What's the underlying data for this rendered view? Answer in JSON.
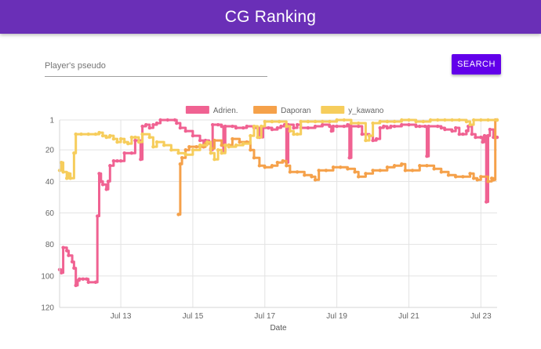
{
  "app": {
    "title": "CG Ranking"
  },
  "search": {
    "placeholder": "Player's pseudo",
    "value": "",
    "button_label": "SEARCH"
  },
  "chart_data": {
    "type": "line",
    "title": "",
    "xlabel": "Date",
    "ylabel": "",
    "y_reversed": true,
    "ylim": [
      1,
      120
    ],
    "yticks": [
      1,
      20,
      40,
      60,
      80,
      100,
      120
    ],
    "xlim": [
      11.3,
      23.45
    ],
    "xticks": [
      {
        "x": 13,
        "label": "Jul 13"
      },
      {
        "x": 15,
        "label": "Jul 15"
      },
      {
        "x": 17,
        "label": "Jul 17"
      },
      {
        "x": 19,
        "label": "Jul 19"
      },
      {
        "x": 21,
        "label": "Jul 21"
      },
      {
        "x": 23,
        "label": "Jul 23"
      }
    ],
    "grid": true,
    "legend": "top",
    "series": [
      {
        "name": "Adrien.",
        "color": "#f06292",
        "points": [
          [
            11.3,
            96
          ],
          [
            11.35,
            98
          ],
          [
            11.4,
            82
          ],
          [
            11.5,
            84
          ],
          [
            11.55,
            87
          ],
          [
            11.65,
            91
          ],
          [
            11.7,
            95
          ],
          [
            11.75,
            106
          ],
          [
            11.8,
            103
          ],
          [
            11.85,
            102
          ],
          [
            11.95,
            102
          ],
          [
            12.05,
            102
          ],
          [
            12.1,
            104
          ],
          [
            12.3,
            104
          ],
          [
            12.35,
            62
          ],
          [
            12.4,
            35
          ],
          [
            12.45,
            40
          ],
          [
            12.5,
            42
          ],
          [
            12.6,
            45
          ],
          [
            12.65,
            40
          ],
          [
            12.7,
            30
          ],
          [
            12.8,
            27
          ],
          [
            12.9,
            27
          ],
          [
            13.0,
            27
          ],
          [
            13.1,
            22
          ],
          [
            13.3,
            22
          ],
          [
            13.4,
            14
          ],
          [
            13.5,
            14
          ],
          [
            13.55,
            26
          ],
          [
            13.6,
            5
          ],
          [
            13.7,
            4
          ],
          [
            13.8,
            6
          ],
          [
            13.9,
            4
          ],
          [
            14.0,
            3
          ],
          [
            14.1,
            1
          ],
          [
            14.3,
            1
          ],
          [
            14.5,
            1
          ],
          [
            14.55,
            3
          ],
          [
            14.65,
            6
          ],
          [
            14.8,
            8
          ],
          [
            15.0,
            11
          ],
          [
            15.2,
            14
          ],
          [
            15.3,
            18
          ],
          [
            15.35,
            14
          ],
          [
            15.45,
            15
          ],
          [
            15.5,
            20
          ],
          [
            15.55,
            4
          ],
          [
            15.7,
            4
          ],
          [
            15.8,
            5
          ],
          [
            15.85,
            21
          ],
          [
            15.9,
            5
          ],
          [
            16.1,
            5
          ],
          [
            16.2,
            6
          ],
          [
            16.4,
            6
          ],
          [
            16.5,
            5
          ],
          [
            16.7,
            6
          ],
          [
            16.8,
            6
          ],
          [
            16.85,
            12
          ],
          [
            16.95,
            6
          ],
          [
            17.1,
            6
          ],
          [
            17.2,
            7
          ],
          [
            17.35,
            6
          ],
          [
            17.45,
            5
          ],
          [
            17.55,
            4
          ],
          [
            17.6,
            28
          ],
          [
            17.65,
            4
          ],
          [
            17.8,
            6
          ],
          [
            17.9,
            4
          ],
          [
            18.0,
            6
          ],
          [
            18.2,
            6
          ],
          [
            18.4,
            5
          ],
          [
            18.6,
            4
          ],
          [
            18.8,
            5
          ],
          [
            18.85,
            8
          ],
          [
            18.9,
            5
          ],
          [
            19.0,
            5
          ],
          [
            19.2,
            5
          ],
          [
            19.3,
            4
          ],
          [
            19.35,
            25
          ],
          [
            19.4,
            5
          ],
          [
            19.6,
            5
          ],
          [
            19.7,
            10
          ],
          [
            19.9,
            11
          ],
          [
            20.0,
            14
          ],
          [
            20.1,
            13
          ],
          [
            20.2,
            6
          ],
          [
            20.3,
            5
          ],
          [
            20.4,
            6
          ],
          [
            20.5,
            5
          ],
          [
            20.6,
            5
          ],
          [
            20.8,
            4
          ],
          [
            21.0,
            4
          ],
          [
            21.2,
            5
          ],
          [
            21.3,
            5
          ],
          [
            21.45,
            5
          ],
          [
            21.5,
            24
          ],
          [
            21.55,
            5
          ],
          [
            21.8,
            5
          ],
          [
            21.9,
            6
          ],
          [
            22.0,
            7
          ],
          [
            22.2,
            8
          ],
          [
            22.3,
            6
          ],
          [
            22.4,
            10
          ],
          [
            22.5,
            10
          ],
          [
            22.6,
            8
          ],
          [
            22.65,
            5
          ],
          [
            22.75,
            10
          ],
          [
            22.85,
            12
          ],
          [
            23.0,
            12
          ],
          [
            23.05,
            15
          ],
          [
            23.1,
            11
          ],
          [
            23.15,
            53
          ],
          [
            23.2,
            11
          ],
          [
            23.25,
            7
          ],
          [
            23.35,
            12
          ],
          [
            23.45,
            12
          ]
        ]
      },
      {
        "name": "Daporan",
        "color": "#f5a14a",
        "points": [
          [
            14.6,
            61
          ],
          [
            14.65,
            29
          ],
          [
            14.7,
            25
          ],
          [
            14.8,
            20
          ],
          [
            14.9,
            18
          ],
          [
            15.1,
            18
          ],
          [
            15.3,
            18
          ],
          [
            15.35,
            16
          ],
          [
            15.5,
            19
          ],
          [
            15.6,
            14
          ],
          [
            15.8,
            17
          ],
          [
            16.0,
            17
          ],
          [
            16.1,
            13
          ],
          [
            16.3,
            15
          ],
          [
            16.5,
            15
          ],
          [
            16.6,
            20
          ],
          [
            16.7,
            25
          ],
          [
            16.85,
            30
          ],
          [
            17.0,
            31
          ],
          [
            17.2,
            30
          ],
          [
            17.35,
            28
          ],
          [
            17.5,
            27
          ],
          [
            17.6,
            30
          ],
          [
            17.7,
            34
          ],
          [
            17.9,
            34
          ],
          [
            18.1,
            36
          ],
          [
            18.3,
            37
          ],
          [
            18.4,
            39
          ],
          [
            18.5,
            33
          ],
          [
            18.7,
            33
          ],
          [
            18.9,
            31
          ],
          [
            19.1,
            31
          ],
          [
            19.3,
            32
          ],
          [
            19.5,
            34
          ],
          [
            19.6,
            37
          ],
          [
            19.8,
            35
          ],
          [
            20.0,
            33
          ],
          [
            20.2,
            33
          ],
          [
            20.4,
            31
          ],
          [
            20.6,
            30
          ],
          [
            20.8,
            29
          ],
          [
            20.9,
            33
          ],
          [
            21.1,
            33
          ],
          [
            21.3,
            30
          ],
          [
            21.5,
            30
          ],
          [
            21.7,
            32
          ],
          [
            21.9,
            34
          ],
          [
            22.1,
            36
          ],
          [
            22.3,
            37
          ],
          [
            22.5,
            37
          ],
          [
            22.7,
            35
          ],
          [
            22.8,
            38
          ],
          [
            22.9,
            39
          ],
          [
            23.0,
            37
          ],
          [
            23.2,
            40
          ],
          [
            23.3,
            38
          ],
          [
            23.35,
            39
          ],
          [
            23.4,
            1
          ],
          [
            23.45,
            1
          ]
        ]
      },
      {
        "name": "y_kawano",
        "color": "#f6cd5c",
        "points": [
          [
            11.3,
            33
          ],
          [
            11.35,
            28
          ],
          [
            11.4,
            34
          ],
          [
            11.5,
            38
          ],
          [
            11.55,
            35
          ],
          [
            11.6,
            38
          ],
          [
            11.7,
            22
          ],
          [
            11.75,
            10
          ],
          [
            11.9,
            10
          ],
          [
            12.1,
            10
          ],
          [
            12.3,
            10
          ],
          [
            12.4,
            9
          ],
          [
            12.5,
            11
          ],
          [
            12.6,
            12
          ],
          [
            12.7,
            11
          ],
          [
            12.8,
            13
          ],
          [
            12.9,
            15
          ],
          [
            13.0,
            13
          ],
          [
            13.1,
            15
          ],
          [
            13.2,
            16
          ],
          [
            13.3,
            12
          ],
          [
            13.4,
            12
          ],
          [
            13.5,
            15
          ],
          [
            13.6,
            10
          ],
          [
            13.8,
            12
          ],
          [
            13.9,
            18
          ],
          [
            14.0,
            15
          ],
          [
            14.2,
            17
          ],
          [
            14.4,
            20
          ],
          [
            14.6,
            22
          ],
          [
            14.8,
            23
          ],
          [
            15.0,
            20
          ],
          [
            15.2,
            17
          ],
          [
            15.4,
            15
          ],
          [
            15.5,
            22
          ],
          [
            15.6,
            26
          ],
          [
            15.7,
            20
          ],
          [
            15.8,
            22
          ],
          [
            15.9,
            17
          ],
          [
            16.0,
            18
          ],
          [
            16.2,
            17
          ],
          [
            16.4,
            16
          ],
          [
            16.6,
            11
          ],
          [
            16.7,
            5
          ],
          [
            16.8,
            12
          ],
          [
            16.9,
            5
          ],
          [
            17.0,
            2
          ],
          [
            17.2,
            2
          ],
          [
            17.4,
            2
          ],
          [
            17.6,
            5
          ],
          [
            17.7,
            8
          ],
          [
            17.8,
            10
          ],
          [
            17.9,
            10
          ],
          [
            18.0,
            2
          ],
          [
            18.2,
            2
          ],
          [
            18.4,
            2
          ],
          [
            18.6,
            2
          ],
          [
            18.8,
            2
          ],
          [
            19.0,
            1
          ],
          [
            19.2,
            1
          ],
          [
            19.4,
            3
          ],
          [
            19.6,
            3
          ],
          [
            19.8,
            14
          ],
          [
            19.9,
            11
          ],
          [
            20.0,
            3
          ],
          [
            20.2,
            2
          ],
          [
            20.4,
            2
          ],
          [
            20.6,
            2
          ],
          [
            20.8,
            1
          ],
          [
            21.0,
            1
          ],
          [
            21.2,
            2
          ],
          [
            21.4,
            2
          ],
          [
            21.6,
            1
          ],
          [
            21.8,
            1
          ],
          [
            22.0,
            1
          ],
          [
            22.2,
            1
          ],
          [
            22.4,
            1
          ],
          [
            22.6,
            2
          ],
          [
            22.7,
            4
          ],
          [
            22.8,
            1
          ],
          [
            23.0,
            1
          ],
          [
            23.2,
            1
          ],
          [
            23.45,
            1
          ]
        ]
      }
    ]
  }
}
